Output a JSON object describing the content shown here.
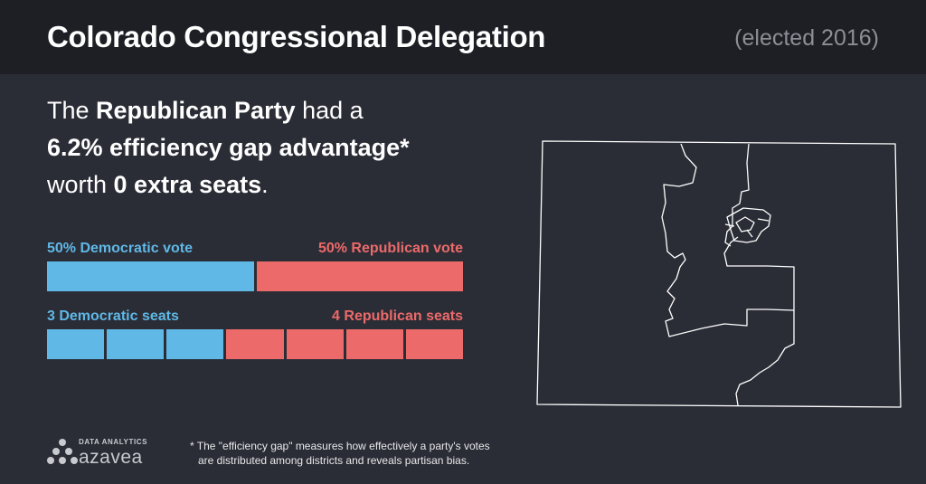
{
  "header": {
    "title": "Colorado Congressional Delegation",
    "subtitle": "(elected 2016)"
  },
  "headline": {
    "line1_pre": "The ",
    "line1_bold": "Republican Party",
    "line1_post": " had a",
    "line2_bold": "6.2% efficiency gap advantage*",
    "line3_pre": "worth ",
    "line3_bold": "0 extra seats",
    "line3_post": "."
  },
  "chart_data": [
    {
      "type": "bar",
      "title": "",
      "categories": [
        "Democratic vote",
        "Republican vote"
      ],
      "values": [
        50,
        50
      ],
      "labels": [
        "50% Democratic vote",
        "50% Republican vote"
      ],
      "colors": [
        "#5fb8e6",
        "#ec6a6a"
      ]
    },
    {
      "type": "bar",
      "title": "",
      "categories": [
        "Democratic seats",
        "Republican seats"
      ],
      "values": [
        3,
        4
      ],
      "labels": [
        "3 Democratic seats",
        "4 Republican seats"
      ],
      "colors": [
        "#5fb8e6",
        "#ec6a6a"
      ]
    }
  ],
  "logo": {
    "small": "DATA ANALYTICS",
    "big": "azavea"
  },
  "footnote": {
    "line1": "* The \"efficiency gap\" measures how effectively a party's votes",
    "line2": "are distributed among districts and reveals partisan bias."
  },
  "colors": {
    "background": "#2b2d36",
    "header": "#1d1f25",
    "democratic": "#5fb8e6",
    "republican": "#ec6a6a"
  },
  "map": {
    "icon": "colorado-district-map"
  }
}
